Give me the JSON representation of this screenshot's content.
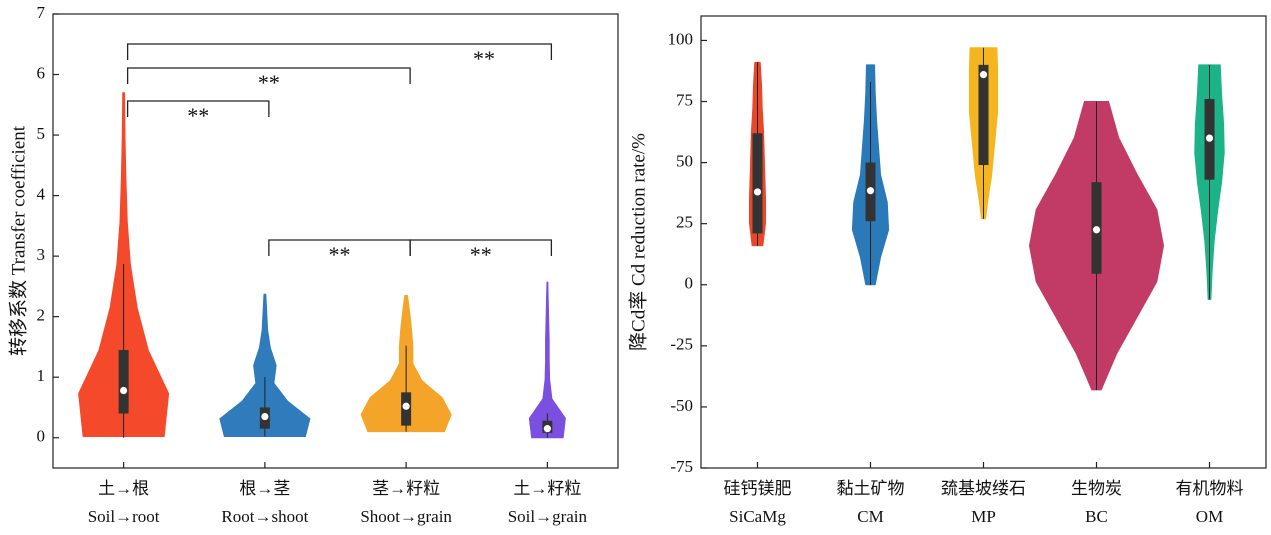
{
  "chart_data": [
    {
      "type": "violin",
      "y_label": "转移系数 Transfer coefficient",
      "categories": [
        "土→根",
        "根→茎",
        "茎→籽粒",
        "土→籽粒"
      ],
      "categories_en": [
        "Soil→root",
        "Root→shoot",
        "Shoot→grain",
        "Soil→grain"
      ],
      "ylim": [
        -0.5,
        7
      ],
      "yticks": [
        0,
        1,
        2,
        3,
        4,
        5,
        6,
        7
      ],
      "violins": [
        {
          "color": "#f4492a",
          "extent": [
            0.02,
            5.7
          ],
          "density": [
            0.9,
            1.0,
            0.55,
            0.3,
            0.15,
            0.08,
            0.05,
            0.03,
            0.02
          ],
          "min": 0,
          "q1": 0.4,
          "median": 0.78,
          "q3": 1.45,
          "max": 2.87
        },
        {
          "color": "#2f7bbb",
          "extent": [
            0.02,
            2.37
          ],
          "density": [
            0.9,
            1.0,
            0.5,
            0.2,
            0.25,
            0.12,
            0.06,
            0.04,
            0.02
          ],
          "min": 0.02,
          "q1": 0.15,
          "median": 0.35,
          "q3": 0.5,
          "max": 1.0
        },
        {
          "color": "#f5a42a",
          "extent": [
            0.1,
            2.35
          ],
          "density": [
            0.85,
            1.0,
            0.8,
            0.35,
            0.15,
            0.15,
            0.12,
            0.08,
            0.03
          ],
          "min": 0.1,
          "q1": 0.2,
          "median": 0.52,
          "q3": 0.75,
          "max": 1.52
        },
        {
          "color": "#7b4fe0",
          "extent": [
            0,
            2.57
          ],
          "density": [
            0.35,
            0.4,
            0.1,
            0.05,
            0.04,
            0.04,
            0.03,
            0.02,
            0.01
          ],
          "min": 0,
          "q1": 0.08,
          "median": 0.15,
          "q3": 0.28,
          "max": 0.4
        }
      ],
      "annotations": [
        {
          "pair": [
            0,
            1
          ],
          "label": "**"
        },
        {
          "pair": [
            0,
            2
          ],
          "label": "**"
        },
        {
          "pair": [
            0,
            3
          ],
          "label": "**"
        },
        {
          "pair": [
            1,
            2
          ],
          "label": "**"
        },
        {
          "pair": [
            2,
            3
          ],
          "label": "**"
        }
      ]
    },
    {
      "type": "violin",
      "y_label": "降Cd率 Cd reduction rate/%",
      "categories": [
        "硅钙镁肥",
        "黏土矿物",
        "巯基坡缕石",
        "生物炭",
        "有机物料"
      ],
      "categories_en": [
        "SiCaMg",
        "CM",
        "MP",
        "BC",
        "OM"
      ],
      "ylim": [
        -75,
        110
      ],
      "yticks": [
        -75,
        -50,
        -25,
        0,
        25,
        50,
        75,
        100
      ],
      "violins": [
        {
          "color": "#e8472a",
          "extent": [
            16,
            91
          ],
          "density": [
            0.08,
            0.12,
            0.12,
            0.11,
            0.1,
            0.09,
            0.07,
            0.06,
            0.04
          ],
          "min": 16,
          "q1": 21,
          "median": 38,
          "q3": 62,
          "max": 91
        },
        {
          "color": "#2a79b8",
          "extent": [
            0,
            90
          ],
          "density": [
            0.07,
            0.15,
            0.27,
            0.25,
            0.15,
            0.12,
            0.09,
            0.07,
            0.06
          ],
          "min": 0,
          "q1": 26,
          "median": 38.5,
          "q3": 50,
          "max": 83
        },
        {
          "color": "#f5b51e",
          "extent": [
            27,
            97
          ],
          "density": [
            0.03,
            0.07,
            0.12,
            0.15,
            0.18,
            0.21,
            0.21,
            0.21,
            0.2
          ],
          "min": 27,
          "q1": 49,
          "median": 86,
          "q3": 90,
          "max": 97
        },
        {
          "color": "#c23b66",
          "extent": [
            -43,
            75
          ],
          "density": [
            0.07,
            0.3,
            0.6,
            0.9,
            1.0,
            0.9,
            0.6,
            0.33,
            0.18
          ],
          "min": -43,
          "q1": 4.5,
          "median": 22.5,
          "q3": 42,
          "max": 75
        },
        {
          "color": "#1cb389",
          "extent": [
            -6,
            90
          ],
          "density": [
            0.02,
            0.04,
            0.07,
            0.12,
            0.18,
            0.22,
            0.21,
            0.18,
            0.16
          ],
          "min": -6,
          "q1": 43,
          "median": 60,
          "q3": 76,
          "max": 90
        }
      ]
    }
  ]
}
